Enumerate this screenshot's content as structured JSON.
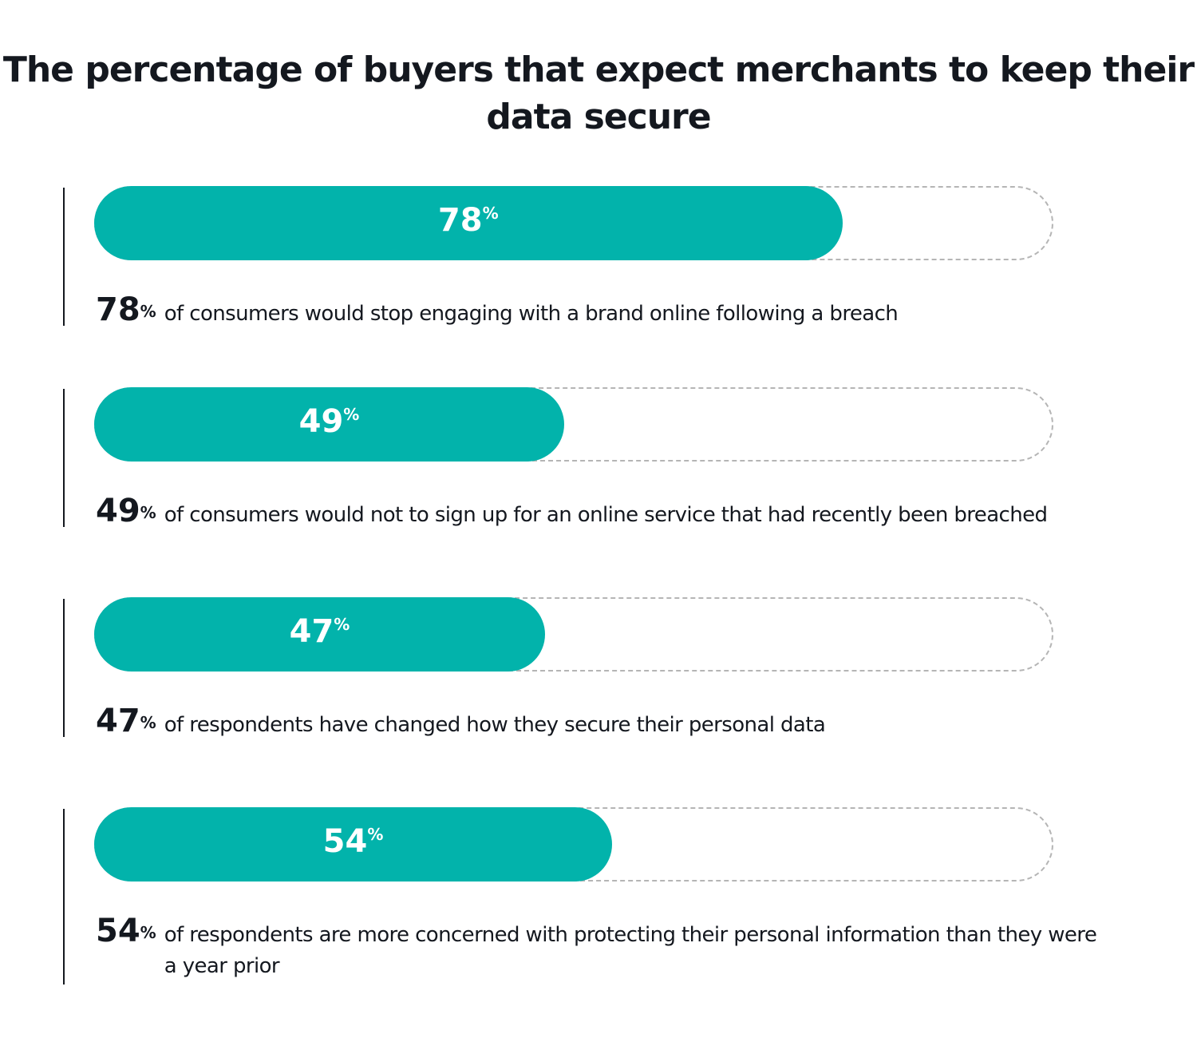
{
  "chart_data": {
    "type": "bar",
    "orientation": "horizontal",
    "title": "The percentage of buyers that expect merchants to keep their data secure",
    "xlim": [
      0,
      100
    ],
    "percent_sign": "%",
    "items": [
      {
        "value": 78,
        "label": "78",
        "caption": "of consumers would stop engaging with a brand online following a breach"
      },
      {
        "value": 49,
        "label": "49",
        "caption": "of consumers would not to sign up for an online service that had recently been breached"
      },
      {
        "value": 47,
        "label": "47",
        "caption": "of respondents have changed how they secure their personal data"
      },
      {
        "value": 54,
        "label": "54",
        "caption": "of respondents are more concerned with protecting their personal information than they were a year prior"
      }
    ]
  },
  "colors": {
    "fill": "#02b3ab",
    "track": "#b5b5b5",
    "text": "#14181f"
  }
}
